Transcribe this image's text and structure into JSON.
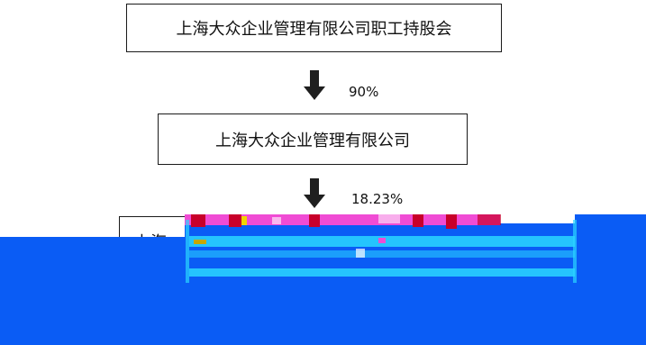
{
  "diagram": {
    "nodes": [
      {
        "id": "n1",
        "label": "上海大众企业管理有限公司职工持股会"
      },
      {
        "id": "n2",
        "label": "上海大众企业管理有限公司"
      },
      {
        "id": "n3",
        "label": "上海"
      }
    ],
    "edges": [
      {
        "from": "n1",
        "to": "n2",
        "label": "90%"
      },
      {
        "from": "n2",
        "to": "n3",
        "label": "18.23%"
      }
    ]
  },
  "colors": {
    "arrow": "#1f1f1f",
    "glitch_blue": "#0a5cf5",
    "glitch_cyan": "#2ad6ff",
    "glitch_magenta": "#f04cd4",
    "glitch_red": "#c8002a",
    "glitch_yellow": "#f1d400"
  }
}
